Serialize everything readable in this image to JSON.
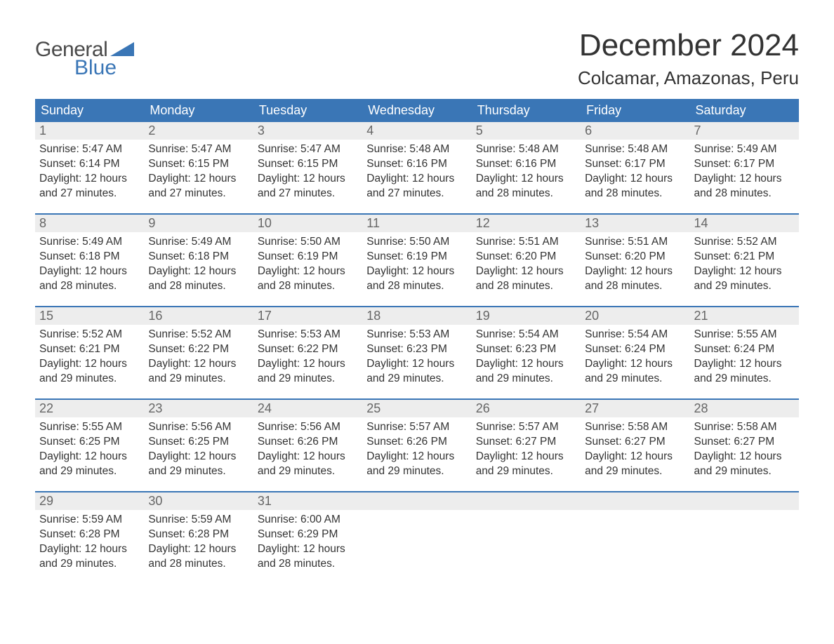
{
  "logo": {
    "line1": "General",
    "line2": "Blue"
  },
  "header": {
    "title": "December 2024",
    "subtitle": "Colcamar, Amazonas, Peru"
  },
  "colors": {
    "header_bg": "#3a76b6",
    "header_text": "#ffffff",
    "daynum_bg": "#ededed",
    "daynum_text": "#666666",
    "body_text": "#333333",
    "week_border": "#3a76b6",
    "logo_gray": "#4a4a4a",
    "logo_blue": "#3a76b6",
    "page_bg": "#ffffff"
  },
  "typography": {
    "title_fontsize": 44,
    "subtitle_fontsize": 26,
    "dayheader_fontsize": 18,
    "daynum_fontsize": 18,
    "content_fontsize": 15.5,
    "font_family": "Arial"
  },
  "calendar": {
    "day_names": [
      "Sunday",
      "Monday",
      "Tuesday",
      "Wednesday",
      "Thursday",
      "Friday",
      "Saturday"
    ],
    "weeks": [
      [
        {
          "num": "1",
          "sunrise": "Sunrise: 5:47 AM",
          "sunset": "Sunset: 6:14 PM",
          "day1": "Daylight: 12 hours",
          "day2": "and 27 minutes."
        },
        {
          "num": "2",
          "sunrise": "Sunrise: 5:47 AM",
          "sunset": "Sunset: 6:15 PM",
          "day1": "Daylight: 12 hours",
          "day2": "and 27 minutes."
        },
        {
          "num": "3",
          "sunrise": "Sunrise: 5:47 AM",
          "sunset": "Sunset: 6:15 PM",
          "day1": "Daylight: 12 hours",
          "day2": "and 27 minutes."
        },
        {
          "num": "4",
          "sunrise": "Sunrise: 5:48 AM",
          "sunset": "Sunset: 6:16 PM",
          "day1": "Daylight: 12 hours",
          "day2": "and 27 minutes."
        },
        {
          "num": "5",
          "sunrise": "Sunrise: 5:48 AM",
          "sunset": "Sunset: 6:16 PM",
          "day1": "Daylight: 12 hours",
          "day2": "and 28 minutes."
        },
        {
          "num": "6",
          "sunrise": "Sunrise: 5:48 AM",
          "sunset": "Sunset: 6:17 PM",
          "day1": "Daylight: 12 hours",
          "day2": "and 28 minutes."
        },
        {
          "num": "7",
          "sunrise": "Sunrise: 5:49 AM",
          "sunset": "Sunset: 6:17 PM",
          "day1": "Daylight: 12 hours",
          "day2": "and 28 minutes."
        }
      ],
      [
        {
          "num": "8",
          "sunrise": "Sunrise: 5:49 AM",
          "sunset": "Sunset: 6:18 PM",
          "day1": "Daylight: 12 hours",
          "day2": "and 28 minutes."
        },
        {
          "num": "9",
          "sunrise": "Sunrise: 5:49 AM",
          "sunset": "Sunset: 6:18 PM",
          "day1": "Daylight: 12 hours",
          "day2": "and 28 minutes."
        },
        {
          "num": "10",
          "sunrise": "Sunrise: 5:50 AM",
          "sunset": "Sunset: 6:19 PM",
          "day1": "Daylight: 12 hours",
          "day2": "and 28 minutes."
        },
        {
          "num": "11",
          "sunrise": "Sunrise: 5:50 AM",
          "sunset": "Sunset: 6:19 PM",
          "day1": "Daylight: 12 hours",
          "day2": "and 28 minutes."
        },
        {
          "num": "12",
          "sunrise": "Sunrise: 5:51 AM",
          "sunset": "Sunset: 6:20 PM",
          "day1": "Daylight: 12 hours",
          "day2": "and 28 minutes."
        },
        {
          "num": "13",
          "sunrise": "Sunrise: 5:51 AM",
          "sunset": "Sunset: 6:20 PM",
          "day1": "Daylight: 12 hours",
          "day2": "and 28 minutes."
        },
        {
          "num": "14",
          "sunrise": "Sunrise: 5:52 AM",
          "sunset": "Sunset: 6:21 PM",
          "day1": "Daylight: 12 hours",
          "day2": "and 29 minutes."
        }
      ],
      [
        {
          "num": "15",
          "sunrise": "Sunrise: 5:52 AM",
          "sunset": "Sunset: 6:21 PM",
          "day1": "Daylight: 12 hours",
          "day2": "and 29 minutes."
        },
        {
          "num": "16",
          "sunrise": "Sunrise: 5:52 AM",
          "sunset": "Sunset: 6:22 PM",
          "day1": "Daylight: 12 hours",
          "day2": "and 29 minutes."
        },
        {
          "num": "17",
          "sunrise": "Sunrise: 5:53 AM",
          "sunset": "Sunset: 6:22 PM",
          "day1": "Daylight: 12 hours",
          "day2": "and 29 minutes."
        },
        {
          "num": "18",
          "sunrise": "Sunrise: 5:53 AM",
          "sunset": "Sunset: 6:23 PM",
          "day1": "Daylight: 12 hours",
          "day2": "and 29 minutes."
        },
        {
          "num": "19",
          "sunrise": "Sunrise: 5:54 AM",
          "sunset": "Sunset: 6:23 PM",
          "day1": "Daylight: 12 hours",
          "day2": "and 29 minutes."
        },
        {
          "num": "20",
          "sunrise": "Sunrise: 5:54 AM",
          "sunset": "Sunset: 6:24 PM",
          "day1": "Daylight: 12 hours",
          "day2": "and 29 minutes."
        },
        {
          "num": "21",
          "sunrise": "Sunrise: 5:55 AM",
          "sunset": "Sunset: 6:24 PM",
          "day1": "Daylight: 12 hours",
          "day2": "and 29 minutes."
        }
      ],
      [
        {
          "num": "22",
          "sunrise": "Sunrise: 5:55 AM",
          "sunset": "Sunset: 6:25 PM",
          "day1": "Daylight: 12 hours",
          "day2": "and 29 minutes."
        },
        {
          "num": "23",
          "sunrise": "Sunrise: 5:56 AM",
          "sunset": "Sunset: 6:25 PM",
          "day1": "Daylight: 12 hours",
          "day2": "and 29 minutes."
        },
        {
          "num": "24",
          "sunrise": "Sunrise: 5:56 AM",
          "sunset": "Sunset: 6:26 PM",
          "day1": "Daylight: 12 hours",
          "day2": "and 29 minutes."
        },
        {
          "num": "25",
          "sunrise": "Sunrise: 5:57 AM",
          "sunset": "Sunset: 6:26 PM",
          "day1": "Daylight: 12 hours",
          "day2": "and 29 minutes."
        },
        {
          "num": "26",
          "sunrise": "Sunrise: 5:57 AM",
          "sunset": "Sunset: 6:27 PM",
          "day1": "Daylight: 12 hours",
          "day2": "and 29 minutes."
        },
        {
          "num": "27",
          "sunrise": "Sunrise: 5:58 AM",
          "sunset": "Sunset: 6:27 PM",
          "day1": "Daylight: 12 hours",
          "day2": "and 29 minutes."
        },
        {
          "num": "28",
          "sunrise": "Sunrise: 5:58 AM",
          "sunset": "Sunset: 6:27 PM",
          "day1": "Daylight: 12 hours",
          "day2": "and 29 minutes."
        }
      ],
      [
        {
          "num": "29",
          "sunrise": "Sunrise: 5:59 AM",
          "sunset": "Sunset: 6:28 PM",
          "day1": "Daylight: 12 hours",
          "day2": "and 29 minutes."
        },
        {
          "num": "30",
          "sunrise": "Sunrise: 5:59 AM",
          "sunset": "Sunset: 6:28 PM",
          "day1": "Daylight: 12 hours",
          "day2": "and 28 minutes."
        },
        {
          "num": "31",
          "sunrise": "Sunrise: 6:00 AM",
          "sunset": "Sunset: 6:29 PM",
          "day1": "Daylight: 12 hours",
          "day2": "and 28 minutes."
        },
        {
          "empty": true
        },
        {
          "empty": true
        },
        {
          "empty": true
        },
        {
          "empty": true
        }
      ]
    ]
  }
}
